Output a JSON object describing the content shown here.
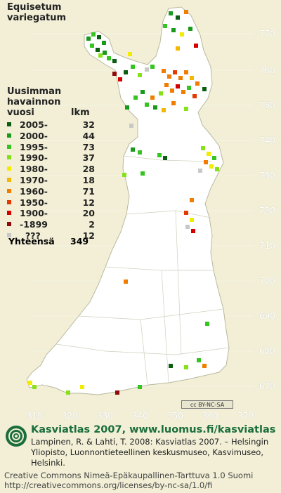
{
  "species": {
    "line1": "Equisetum",
    "line2": "variegatum"
  },
  "legend": {
    "heading1": "Uusimman",
    "heading2": "havainnon",
    "heading3": "vuosi",
    "count_heading": "lkm",
    "rows": [
      {
        "label": "2005-",
        "count": "32",
        "color": "#0b5d12"
      },
      {
        "label": "2000-",
        "count": "44",
        "color": "#1a9a1a"
      },
      {
        "label": "1995-",
        "count": "73",
        "color": "#35c421"
      },
      {
        "label": "1990-",
        "count": "37",
        "color": "#86e01a"
      },
      {
        "label": "1980-",
        "count": "28",
        "color": "#f2ec00"
      },
      {
        "label": "1970-",
        "count": "18",
        "color": "#f5b800"
      },
      {
        "label": "1960-",
        "count": "71",
        "color": "#f07c00"
      },
      {
        "label": "1950-",
        "count": "12",
        "color": "#e23a00"
      },
      {
        "label": "1900-",
        "count": "20",
        "color": "#d40000"
      },
      {
        "label": "-1899",
        "count": "2",
        "color": "#8f0a0a"
      },
      {
        "label": "???",
        "count": "12",
        "color": "#c8c8c8"
      }
    ],
    "total_label": "Yhteensä",
    "total_value": "349"
  },
  "axis": {
    "y_ticks": [
      "770",
      "760",
      "750",
      "740",
      "730",
      "720",
      "710",
      "700",
      "690",
      "680",
      "670"
    ],
    "x_ticks": [
      "310",
      "320",
      "330",
      "340",
      "350",
      "360",
      "370"
    ]
  },
  "license_badge": "cc BY-NC-SA",
  "footer": {
    "title": "Kasviatlas 2007, www.luomus.fi/kasviatlas",
    "citation": "Lampinen, R. & Lahti, T. 2008: Kasviatlas 2007. – Helsingin Yliopisto, Luonnontieteellinen keskusmuseo, Kasvimuseo, Helsinki.",
    "cc_line1": "Creative Commons Nimeä-Epäkaupallinen-Tarttuva 1.0 Suomi",
    "cc_line2": "http://creativecommons.org/licenses/by-nc-sa/1.0/fi"
  },
  "colors": {
    "background": "#f2efd6",
    "land": "#ffffff",
    "border": "#b9b9a0",
    "brand_green": "#1b6e3c"
  }
}
